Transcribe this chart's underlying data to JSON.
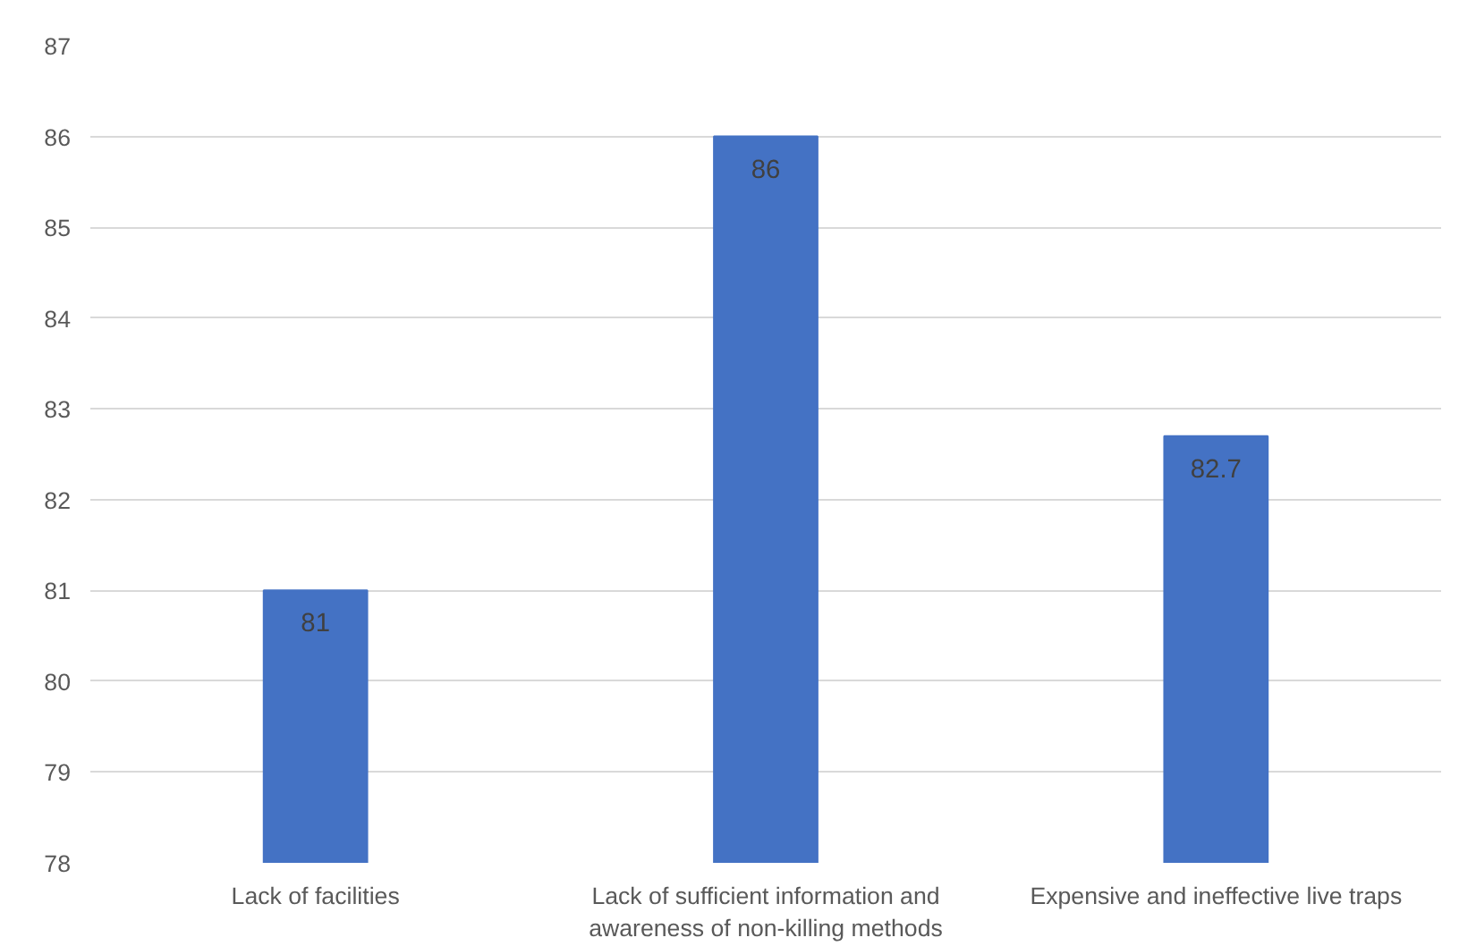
{
  "chart_data": {
    "type": "bar",
    "categories": [
      "Lack of facilities",
      "Lack of sufficient information and awareness of non-killing methods",
      "Expensive and ineffective live traps"
    ],
    "values": [
      81,
      86,
      82.7
    ],
    "color": "#4472c4",
    "ylim": [
      78,
      87
    ],
    "yticks": [
      78,
      79,
      80,
      81,
      82,
      83,
      84,
      85,
      86,
      87
    ],
    "grid": "y",
    "data_labels": true
  }
}
